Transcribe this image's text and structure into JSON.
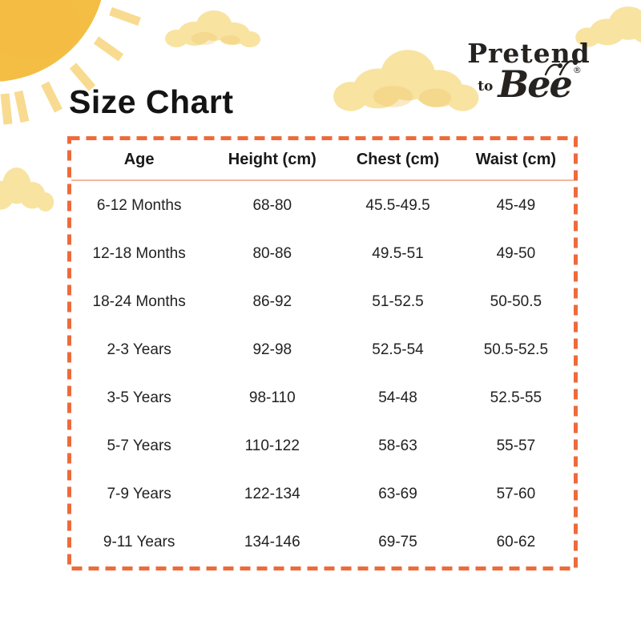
{
  "title": "Size Chart",
  "logo": {
    "word1": "Pretend",
    "word2": "to",
    "word3": "Bee",
    "registered": "®"
  },
  "chart_data": {
    "type": "table",
    "title": "Size Chart",
    "columns": [
      "Age",
      "Height (cm)",
      "Chest (cm)",
      "Waist (cm)"
    ],
    "rows": [
      [
        "6-12 Months",
        "68-80",
        "45.5-49.5",
        "45-49"
      ],
      [
        "12-18 Months",
        "80-86",
        "49.5-51",
        "49-50"
      ],
      [
        "18-24 Months",
        "86-92",
        "51-52.5",
        "50-50.5"
      ],
      [
        "2-3 Years",
        "92-98",
        "52.5-54",
        "50.5-52.5"
      ],
      [
        "3-5 Years",
        "98-110",
        "54-48",
        "52.5-55"
      ],
      [
        "5-7 Years",
        "110-122",
        "58-63",
        "55-57"
      ],
      [
        "7-9 Years",
        "122-134",
        "63-69",
        "57-60"
      ],
      [
        "9-11 Years",
        "134-146",
        "69-75",
        "60-62"
      ]
    ]
  },
  "colors": {
    "table_border": "#ED6B3B",
    "header_underline": "#F3B79E",
    "text": "#1E1E1E",
    "sun_body": "#F4BE44",
    "sun_rays": "#F8DB90",
    "cloud": "#F8E3A1",
    "cloud_shade": "#EFC96F",
    "logo_text": "#262220"
  },
  "icons": {
    "sun": "sun-icon",
    "clouds": "cloud-icon",
    "bee_antennae": "bee-antennae-icon"
  }
}
